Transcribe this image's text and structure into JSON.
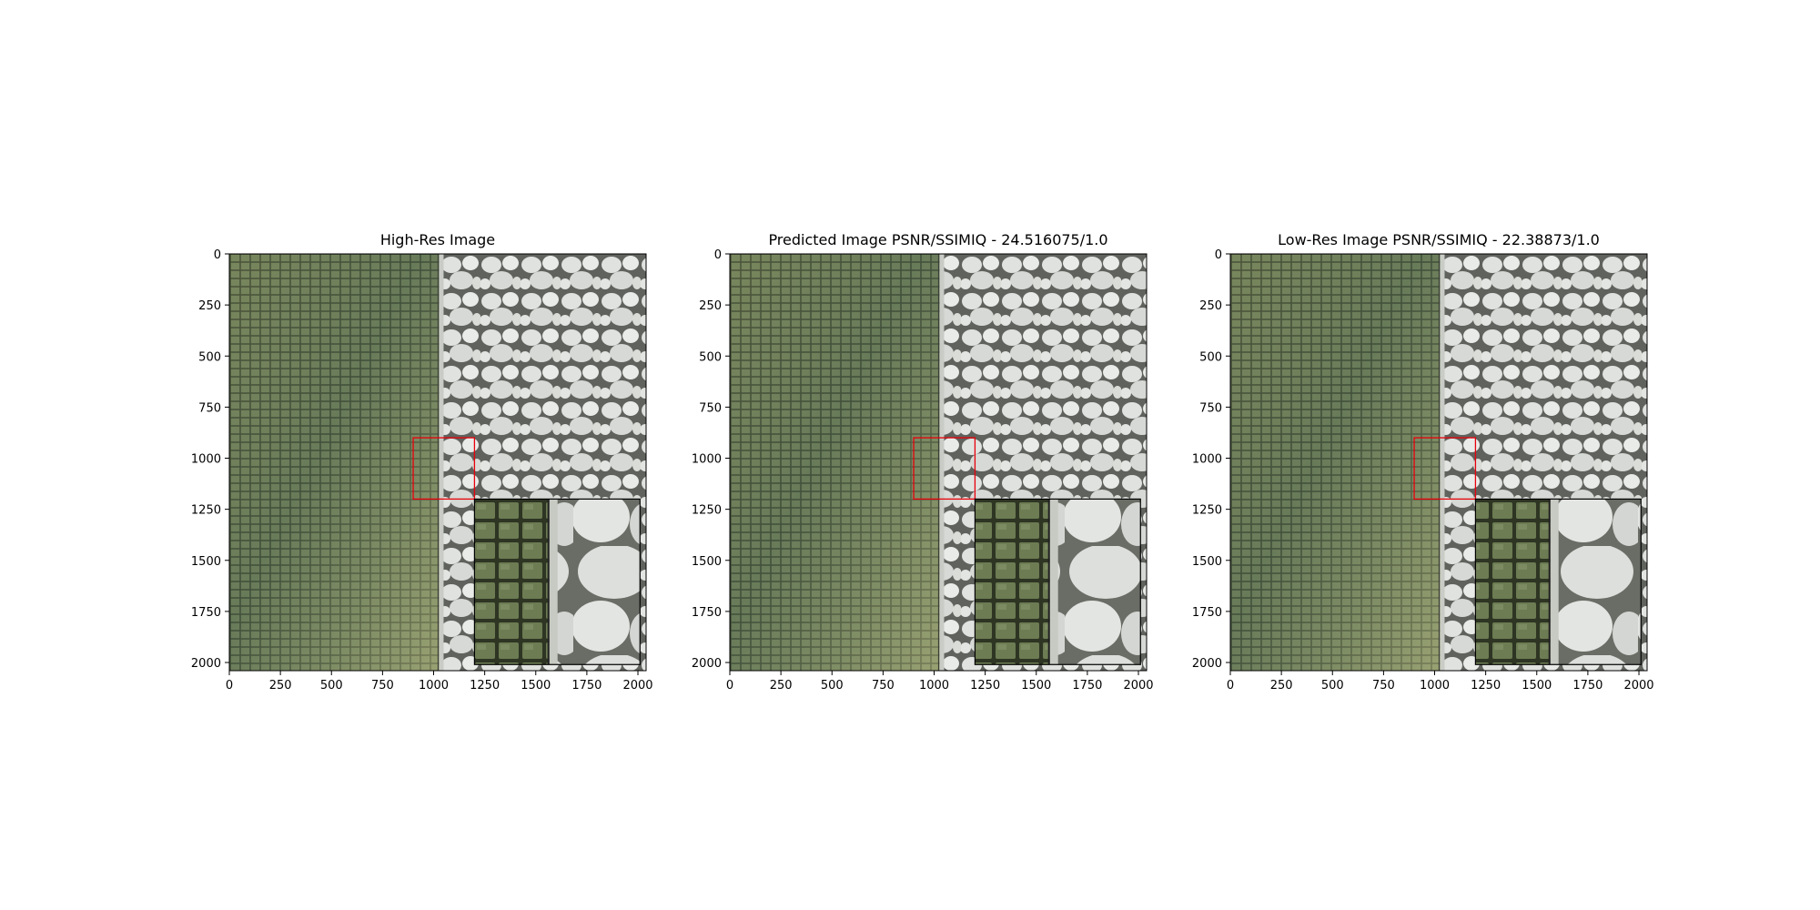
{
  "chart_data": [
    {
      "type": "image",
      "title": "High-Res Image",
      "x_ticks": [
        0,
        250,
        500,
        750,
        1000,
        1250,
        1500,
        1750,
        2000
      ],
      "y_ticks": [
        0,
        250,
        500,
        750,
        1000,
        1250,
        1500,
        1750,
        2000
      ],
      "xlim": [
        0,
        2040
      ],
      "ylim": [
        2040,
        0
      ],
      "zoom_region": {
        "x": [
          900,
          1200
        ],
        "y": [
          900,
          1200
        ]
      },
      "zoom_color": "#e8000b"
    },
    {
      "type": "image",
      "title": "Predicted Image PSNR/SSIMIQ - 24.516075/1.0",
      "x_ticks": [
        0,
        250,
        500,
        750,
        1000,
        1250,
        1500,
        1750,
        2000
      ],
      "y_ticks": [
        0,
        250,
        500,
        750,
        1000,
        1250,
        1500,
        1750,
        2000
      ],
      "xlim": [
        0,
        2040
      ],
      "ylim": [
        2040,
        0
      ],
      "zoom_region": {
        "x": [
          900,
          1200
        ],
        "y": [
          900,
          1200
        ]
      },
      "zoom_color": "#e8000b"
    },
    {
      "type": "image",
      "title": "Low-Res Image PSNR/SSIMIQ - 22.38873/1.0",
      "x_ticks": [
        0,
        250,
        500,
        750,
        1000,
        1250,
        1500,
        1750,
        2000
      ],
      "y_ticks": [
        0,
        250,
        500,
        750,
        1000,
        1250,
        1500,
        1750,
        2000
      ],
      "xlim": [
        0,
        2040
      ],
      "ylim": [
        2040,
        0
      ],
      "zoom_region": {
        "x": [
          900,
          1200
        ],
        "y": [
          900,
          1200
        ]
      },
      "zoom_color": "#e8000b"
    }
  ],
  "image_content": {
    "left_texture": "green mosaic tiles",
    "right_texture": "white pebbles",
    "tile_color": "#6f7d55",
    "tile_color_light": "#a3ab7c",
    "grout_color": "#2e3523",
    "pebble_color": "#dcdfdc",
    "pebble_shadow": "#7d8079"
  }
}
